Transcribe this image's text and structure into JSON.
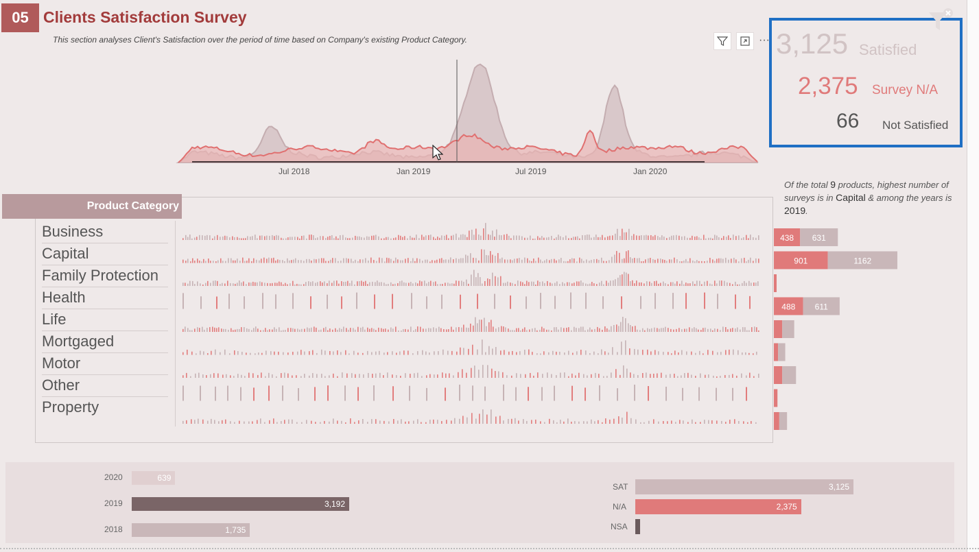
{
  "header": {
    "badge": "05",
    "title": "Clients Satisfaction Survey",
    "subtitle": "This section analyses Client's Satisfaction over the period of time based on Company's existing Product Category."
  },
  "toolbar": {
    "filter_icon": "filter-icon",
    "focus_icon": "focus-mode-icon",
    "more_label": "···"
  },
  "kpis": {
    "satisfied": {
      "value": "3,125",
      "label": "Satisfied"
    },
    "na": {
      "value": "2,375",
      "label": "Survey N/A"
    },
    "not_satisfied": {
      "value": "66",
      "label": "Not Satisfied"
    }
  },
  "timeline": {
    "x_ticks": [
      "Jul 2018",
      "Jan 2019",
      "Jul 2019",
      "Jan 2020"
    ]
  },
  "product_category": {
    "header": "Product Category",
    "categories": [
      "Business",
      "Capital",
      "Family Protection",
      "Health",
      "Life",
      "Mortgaged",
      "Motor",
      "Other",
      "Property"
    ],
    "bar_values": [
      {
        "a": 438,
        "b": 631,
        "a_label": "438",
        "b_label": "631"
      },
      {
        "a": 901,
        "b": 1162,
        "a_label": "901",
        "b_label": "1162"
      },
      {
        "a": 5,
        "b": 0
      },
      {
        "a": 488,
        "b": 611,
        "a_label": "488",
        "b_label": "611"
      },
      {
        "a": 140,
        "b": 200
      },
      {
        "a": 70,
        "b": 120
      },
      {
        "a": 140,
        "b": 230
      },
      {
        "a": 60,
        "b": 0
      },
      {
        "a": 90,
        "b": 130
      }
    ]
  },
  "note": {
    "part1": "Of the total",
    "total": "9",
    "part2": "products, highest number of surveys is in",
    "category": "Capital",
    "part3": "& among the years is",
    "year": "2019",
    "end": "."
  },
  "years_chart": {
    "rows": [
      {
        "label": "2020",
        "value": 639,
        "text": "639"
      },
      {
        "label": "2019",
        "value": 3192,
        "text": "3,192"
      },
      {
        "label": "2018",
        "value": 1735,
        "text": "1,735"
      }
    ]
  },
  "status_chart": {
    "rows": [
      {
        "label": "SAT",
        "value": 3125,
        "text": "3,125"
      },
      {
        "label": "N/A",
        "value": 2375,
        "text": "2,375"
      },
      {
        "label": "NSA",
        "value": 66,
        "text": ""
      }
    ]
  },
  "colors": {
    "accent": "#b05a5a",
    "red": "#e07a7a",
    "grey": "#c9b7b9",
    "dark": "#7a6567",
    "kpi_border": "#1f6fc4"
  }
}
